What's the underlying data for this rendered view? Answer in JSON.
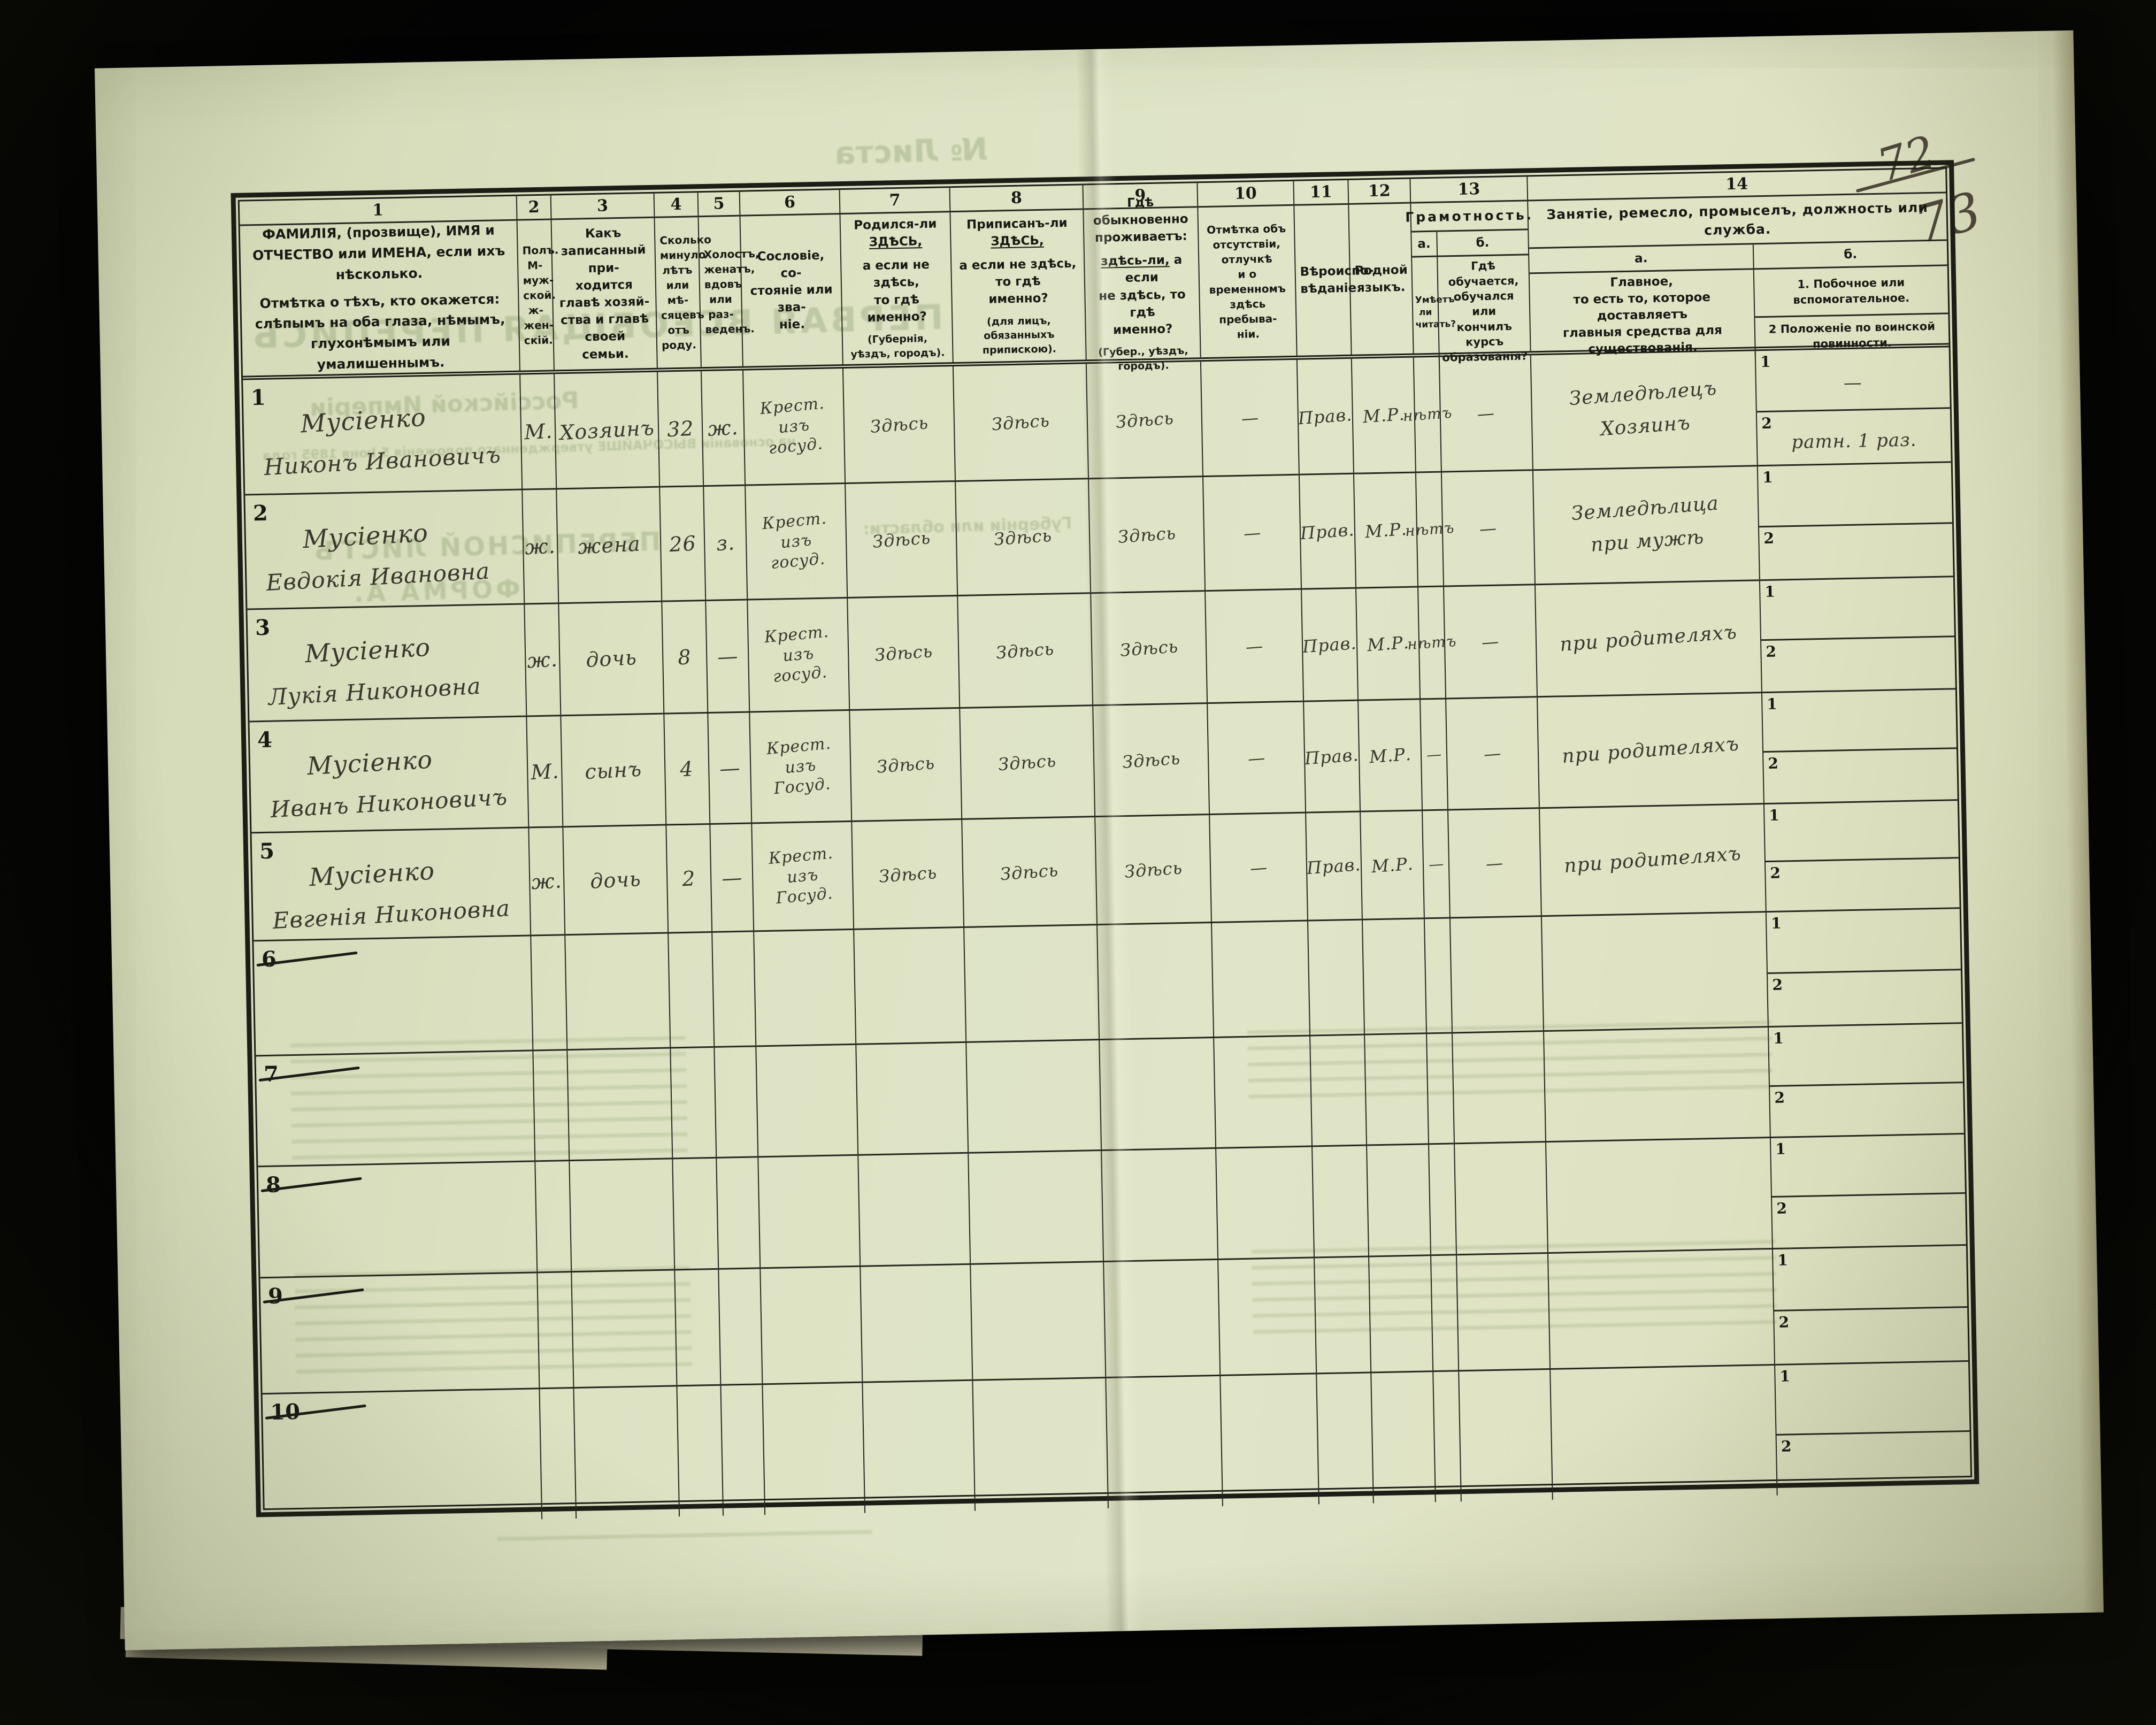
{
  "page": {
    "folio_old": "72",
    "folio_new": "73",
    "bleedthrough": [
      "№ Листа",
      "ПЕРВАЯ ВСЕОБЩАЯ ПЕРЕПИСЬ",
      "Россійской Имперіи",
      "на основаніи ВЫСОЧАЙШЕ утвержденнаго положенія 5 Іюня 1895 года",
      "ПЕРЕПИСНОЙ ЛИСТЪ",
      "ФОРМА А.",
      "Губерніи или области:"
    ]
  },
  "table": {
    "col_numbers": [
      "1",
      "2",
      "3",
      "4",
      "5",
      "6",
      "7",
      "8",
      "9",
      "10",
      "11",
      "12",
      "13",
      "14"
    ],
    "headers": {
      "c1a": "ФАМИЛІЯ, (прозвище), ИМЯ и ОТЧЕСТВО или ИМЕНА, если ихъ нѣсколько.",
      "c1b": "Отмѣтка о тѣхъ, кто окажется: слѣпымъ на оба глаза, нѣмымъ, глухонѣмымъ или умалишеннымъ.",
      "c2": "Полъ.\nМ-муж-\nской.\nж-жен-\nскій.",
      "c3": "Какъ записанный при-\nходится главѣ хозяй-\nства и главѣ своей\nсемьи.",
      "c4": "Сколько\nминуло\nлѣтъ\nили мѣ-\nсяцевъ\nотъ роду.",
      "c5": "Холостъ,\nженатъ,\nвдовъ\nили раз-\nведенъ.",
      "c6": "Сословіе, со-\nстояніе или зва-\nніе.",
      "c7_1": "Родился-ли",
      "c7_u": "ЗДѢСЬ,",
      "c7_2": "а если не здѣсь,\nто гдѣ именно?",
      "c7_n": "(Губернія, уѣздъ, городъ).",
      "c8_1": "Приписанъ-ли",
      "c8_u": "ЗДѢСЬ,",
      "c8_2": "а если не здѣсь, то гдѣ\nименно?",
      "c8_n": "(для лицъ, обязанныхъ припискою).",
      "c9_1": "Гдѣ обыкновенно\nпроживаетъ:",
      "c9_u": "здѣсь-ли,",
      "c9_2": "а если\nне здѣсь, то гдѣ\nименно?",
      "c9_n": "(Губер., уѣздъ, городъ).",
      "c10": "Отмѣтка объ\nотсутствіи, отлучкѣ\nи о временномъ\nздѣсь пребыва-\nніи.",
      "c11": "Вѣроиспо-\nвѣданіе.",
      "c12": "Родной\nязыкъ.",
      "c13_title": "Грамотность.",
      "c13_a": "а.",
      "c13_b": "б.",
      "c13_a_text": "Умѣетъ-\nли\nчитать?",
      "c13_b_text": "Гдѣ обучается,\nобучался или\nкончилъ курсъ\nобразованія?",
      "c14_title": "Занятіе, ремесло, промыселъ, должность или служба.",
      "c14_a": "а.",
      "c14_b": "б.",
      "c14_a_text": "Главное,\nто есть то, которое доставляетъ\nглавныя средства для существованія.",
      "c14_b1": "1.  Побочное или вспомогательное.",
      "c14_b2": "2   Положеніе по воинской повинности."
    },
    "sub_labels": [
      "1",
      "2"
    ],
    "rows": [
      {
        "num": "1",
        "struck": false,
        "surname": "Мусіенко",
        "name": "Никонъ Ивановичъ",
        "sex": "М.",
        "relation": "Хозяинъ",
        "age": "32",
        "marital": "ж.",
        "estate": "Крест.\nизъ\nгосуд.",
        "born": "Здѣсь",
        "registered": "Здѣсь",
        "resides": "Здѣсь",
        "absence": "—",
        "religion": "Прав.",
        "language": "М.Р.",
        "read": "нѣтъ",
        "edu": "—",
        "occupation": "Земледѣлецъ\nХозяинъ",
        "side": "—",
        "military": "ратн. 1 раз."
      },
      {
        "num": "2",
        "struck": false,
        "surname": "Мусіенко",
        "name": "Евдокія Ивановна",
        "sex": "ж.",
        "relation": "жена",
        "age": "26",
        "marital": "з.",
        "estate": "Крест.\nизъ\nгосуд.",
        "born": "Здѣсь",
        "registered": "Здѣсь",
        "resides": "Здѣсь",
        "absence": "—",
        "religion": "Прав.",
        "language": "М.Р.",
        "read": "нѣтъ",
        "edu": "—",
        "occupation": "Земледѣлица\nпри мужѣ",
        "side": "",
        "military": ""
      },
      {
        "num": "3",
        "struck": false,
        "surname": "Мусіенко",
        "name": "Лукія Никоновна",
        "sex": "ж.",
        "relation": "дочь",
        "age": "8",
        "marital": "—",
        "estate": "Крест.\nизъ\nгосуд.",
        "born": "Здѣсь",
        "registered": "Здѣсь",
        "resides": "Здѣсь",
        "absence": "—",
        "religion": "Прав.",
        "language": "М.Р.",
        "read": "нѣтъ",
        "edu": "—",
        "occupation": "при родителяхъ",
        "side": "",
        "military": ""
      },
      {
        "num": "4",
        "struck": false,
        "surname": "Мусіенко",
        "name": "Иванъ Никоновичъ",
        "sex": "М.",
        "relation": "сынъ",
        "age": "4",
        "marital": "—",
        "estate": "Крест.\nизъ\nГосуд.",
        "born": "Здѣсь",
        "registered": "Здѣсь",
        "resides": "Здѣсь",
        "absence": "—",
        "religion": "Прав.",
        "language": "М.Р.",
        "read": "—",
        "edu": "—",
        "occupation": "при родителяхъ",
        "side": "",
        "military": ""
      },
      {
        "num": "5",
        "struck": false,
        "surname": "Мусіенко",
        "name": "Евгенія Никоновна",
        "sex": "ж.",
        "relation": "дочь",
        "age": "2",
        "marital": "—",
        "estate": "Крест.\nизъ\nГосуд.",
        "born": "Здѣсь",
        "registered": "Здѣсь",
        "resides": "Здѣсь",
        "absence": "—",
        "religion": "Прав.",
        "language": "М.Р.",
        "read": "—",
        "edu": "—",
        "occupation": "при родителяхъ",
        "side": "",
        "military": ""
      },
      {
        "num": "6",
        "struck": true,
        "surname": "",
        "name": "",
        "sex": "",
        "relation": "",
        "age": "",
        "marital": "",
        "estate": "",
        "born": "",
        "registered": "",
        "resides": "",
        "absence": "",
        "religion": "",
        "language": "",
        "read": "",
        "edu": "",
        "occupation": "",
        "side": "",
        "military": ""
      },
      {
        "num": "7",
        "struck": true,
        "surname": "",
        "name": "",
        "sex": "",
        "relation": "",
        "age": "",
        "marital": "",
        "estate": "",
        "born": "",
        "registered": "",
        "resides": "",
        "absence": "",
        "religion": "",
        "language": "",
        "read": "",
        "edu": "",
        "occupation": "",
        "side": "",
        "military": ""
      },
      {
        "num": "8",
        "struck": true,
        "surname": "",
        "name": "",
        "sex": "",
        "relation": "",
        "age": "",
        "marital": "",
        "estate": "",
        "born": "",
        "registered": "",
        "resides": "",
        "absence": "",
        "religion": "",
        "language": "",
        "read": "",
        "edu": "",
        "occupation": "",
        "side": "",
        "military": ""
      },
      {
        "num": "9",
        "struck": true,
        "surname": "",
        "name": "",
        "sex": "",
        "relation": "",
        "age": "",
        "marital": "",
        "estate": "",
        "born": "",
        "registered": "",
        "resides": "",
        "absence": "",
        "religion": "",
        "language": "",
        "read": "",
        "edu": "",
        "occupation": "",
        "side": "",
        "military": ""
      },
      {
        "num": "10",
        "struck": true,
        "surname": "",
        "name": "",
        "sex": "",
        "relation": "",
        "age": "",
        "marital": "",
        "estate": "",
        "born": "",
        "registered": "",
        "resides": "",
        "absence": "",
        "religion": "",
        "language": "",
        "read": "",
        "edu": "",
        "occupation": "",
        "side": "",
        "military": ""
      }
    ]
  }
}
